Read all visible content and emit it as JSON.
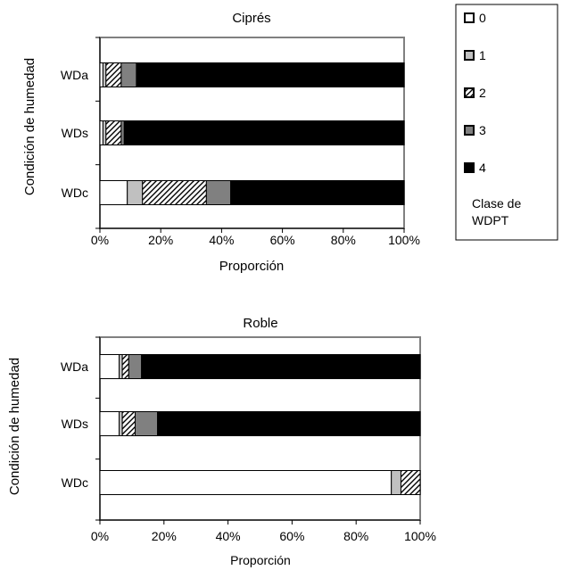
{
  "chart_data": [
    {
      "type": "bar",
      "orientation": "horizontal",
      "stacked": true,
      "title": "Ciprés",
      "xlabel": "Proporción",
      "ylabel": "Condición de humedad",
      "categories": [
        "WDa",
        "WDs",
        "WDc"
      ],
      "xlim": [
        0,
        100
      ],
      "xticks": [
        "0%",
        "20%",
        "40%",
        "60%",
        "80%",
        "100%"
      ],
      "grid": false,
      "series": [
        {
          "name": "0",
          "values": [
            1,
            1,
            9
          ]
        },
        {
          "name": "1",
          "values": [
            1,
            1,
            5
          ]
        },
        {
          "name": "2",
          "values": [
            5,
            5,
            21
          ]
        },
        {
          "name": "3",
          "values": [
            5,
            1,
            8
          ]
        },
        {
          "name": "4",
          "values": [
            88,
            92,
            57
          ]
        }
      ]
    },
    {
      "type": "bar",
      "orientation": "horizontal",
      "stacked": true,
      "title": "Roble",
      "xlabel": "Proporción",
      "ylabel": "Condición de humedad",
      "categories": [
        "WDa",
        "WDs",
        "WDc"
      ],
      "xlim": [
        0,
        100
      ],
      "xticks": [
        "0%",
        "20%",
        "40%",
        "60%",
        "80%",
        "100%"
      ],
      "grid": false,
      "series": [
        {
          "name": "0",
          "values": [
            6,
            6,
            91
          ]
        },
        {
          "name": "1",
          "values": [
            1,
            1,
            3
          ]
        },
        {
          "name": "2",
          "values": [
            2,
            4,
            6
          ]
        },
        {
          "name": "3",
          "values": [
            4,
            7,
            0
          ]
        },
        {
          "name": "4",
          "values": [
            87,
            82,
            0
          ]
        }
      ]
    }
  ],
  "legend": {
    "title": "Clase de WDPT",
    "title_lines": [
      "Clase de",
      "WDPT"
    ],
    "placement": "top-right",
    "items": [
      {
        "label": "0",
        "fill": "white"
      },
      {
        "label": "1",
        "fill": "lightgray"
      },
      {
        "label": "2",
        "fill": "hatch"
      },
      {
        "label": "3",
        "fill": "gray"
      },
      {
        "label": "4",
        "fill": "black"
      }
    ]
  },
  "colors": {
    "class0": "#ffffff",
    "class1": "#c0c0c0",
    "class2": "hatch",
    "class3": "#808080",
    "class4": "#000000",
    "plot_border": "#808080"
  }
}
